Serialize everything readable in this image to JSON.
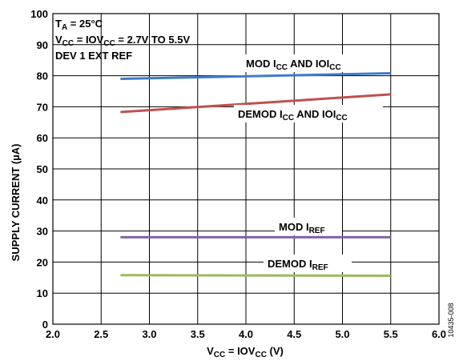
{
  "chart_data": {
    "type": "line",
    "xlabel": {
      "main": "V",
      "sub1": "CC",
      "mid": " = IOV",
      "sub2": "CC",
      "end": " (V)"
    },
    "ylabel": "SUPPLY CURRENT (µA)",
    "xlim": [
      2.0,
      6.0
    ],
    "ylim": [
      0,
      100
    ],
    "xticks": [
      "2.0",
      "2.5",
      "3.0",
      "3.5",
      "4.0",
      "4.5",
      "5.0",
      "5.5",
      "6.0"
    ],
    "yticks": [
      "0",
      "10",
      "20",
      "30",
      "40",
      "50",
      "60",
      "70",
      "80",
      "90",
      "100"
    ],
    "grid": true,
    "annotation": {
      "line1": {
        "main": "T",
        "sub": "A",
        "end": " = 25°C"
      },
      "line2": {
        "main": "V",
        "sub1": "CC",
        "mid": " = IOV",
        "sub2": "CC",
        "end": " = 2.7V TO 5.5V"
      },
      "line3": "DEV 1 EXT REF"
    },
    "series": [
      {
        "name": "MOD ICC AND IOICC",
        "color": "#3d7cc9",
        "x": [
          2.7,
          5.5
        ],
        "y": [
          79.0,
          80.8
        ],
        "label": {
          "a": "MOD I",
          "b": "CC",
          "c": " AND IOI",
          "d": "CC"
        }
      },
      {
        "name": "DEMOD ICC AND IOICC",
        "color": "#c0504d",
        "x": [
          2.7,
          5.5
        ],
        "y": [
          68.3,
          74.0
        ],
        "label": {
          "a": "DEMOD I",
          "b": "CC",
          "c": " AND IOI",
          "d": "CC"
        }
      },
      {
        "name": "MOD IREF",
        "color": "#8064a2",
        "x": [
          2.7,
          5.5
        ],
        "y": [
          28.0,
          28.0
        ],
        "label": {
          "a": "MOD I",
          "b": "REF"
        }
      },
      {
        "name": "DEMOD IREF",
        "color": "#9bbb59",
        "x": [
          2.7,
          5.5
        ],
        "y": [
          15.8,
          15.6
        ],
        "label": {
          "a": "DEMOD I",
          "b": "REF"
        }
      }
    ],
    "figure_id": "10435-008"
  }
}
